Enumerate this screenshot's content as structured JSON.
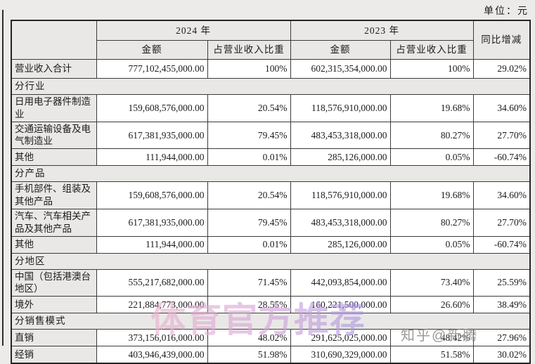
{
  "page": {
    "unit_label": "单位：元"
  },
  "watermarks": {
    "promo_text": "体育官方推荐",
    "credit_text": "知乎@新腾"
  },
  "colors": {
    "page_background": "#ecebe9",
    "cell_gray": "#e9e8e6",
    "cell_white": "#ffffff",
    "border": "#3b3b3b",
    "promo_watermark_start": "#eab2cd",
    "promo_watermark_end": "#a996e4",
    "credit_watermark": "#8a8a8a"
  },
  "table": {
    "headers": {
      "year_2024": "2024 年",
      "year_2023": "2023 年",
      "amount_2024": "金额",
      "pct_2024": "占营业收入比重",
      "amount_2023": "金额",
      "pct_2023": "占营业收入比重",
      "yoy": "同比增减"
    },
    "rows": [
      {
        "type": "data",
        "label": "营业收入合计",
        "a24": "777,102,455,000.00",
        "p24": "100%",
        "a23": "602,315,354,000.00",
        "p23": "100%",
        "yoy": "29.02%"
      },
      {
        "type": "section",
        "label": "分行业"
      },
      {
        "type": "data",
        "label": "日用电子器件制造业",
        "a24": "159,608,576,000.00",
        "p24": "20.54%",
        "a23": "118,576,910,000.00",
        "p23": "19.68%",
        "yoy": "34.60%"
      },
      {
        "type": "data",
        "label": "交通运输设备及电气制造业",
        "a24": "617,381,935,000.00",
        "p24": "79.45%",
        "a23": "483,453,318,000.00",
        "p23": "80.27%",
        "yoy": "27.70%"
      },
      {
        "type": "data",
        "label": "其他",
        "a24": "111,944,000.00",
        "p24": "0.01%",
        "a23": "285,126,000.00",
        "p23": "0.05%",
        "yoy": "-60.74%"
      },
      {
        "type": "section",
        "label": "分产品"
      },
      {
        "type": "data",
        "label": "手机部件、组装及其他产品",
        "a24": "159,608,576,000.00",
        "p24": "20.54%",
        "a23": "118,576,910,000.00",
        "p23": "19.68%",
        "yoy": "34.60%"
      },
      {
        "type": "data",
        "label": "汽车、汽车相关产品及其他产品",
        "a24": "617,381,935,000.00",
        "p24": "79.45%",
        "a23": "483,453,318,000.00",
        "p23": "80.27%",
        "yoy": "27.70%"
      },
      {
        "type": "data",
        "label": "其他",
        "a24": "111,944,000.00",
        "p24": "0.01%",
        "a23": "285,126,000.00",
        "p23": "0.05%",
        "yoy": "-60.74%"
      },
      {
        "type": "section",
        "label": "分地区"
      },
      {
        "type": "data",
        "label": "中国（包括港澳台地区）",
        "a24": "555,217,682,000.00",
        "p24": "71.45%",
        "a23": "442,093,854,000.00",
        "p23": "73.40%",
        "yoy": "25.59%"
      },
      {
        "type": "data",
        "label": "境外",
        "a24": "221,884,773,000.00",
        "p24": "28.55%",
        "a23": "160,221,500,000.00",
        "p23": "26.60%",
        "yoy": "38.49%"
      },
      {
        "type": "section",
        "label": "分销售模式"
      },
      {
        "type": "data",
        "label": "直销",
        "a24": "373,156,016,000.00",
        "p24": "48.02%",
        "a23": "291,625,025,000.00",
        "p23": "48.42%",
        "yoy": "27.96%"
      },
      {
        "type": "data",
        "label": "经销",
        "a24": "403,946,439,000.00",
        "p24": "51.98%",
        "a23": "310,690,329,000.00",
        "p23": "51.58%",
        "yoy": "30.02%"
      }
    ]
  }
}
